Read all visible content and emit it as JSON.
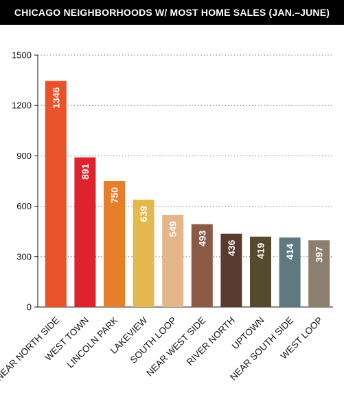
{
  "chart_data": {
    "type": "bar",
    "title": "CHICAGO NEIGHBORHOODS W/ MOST HOME SALES (JAN.–JUNE)",
    "categories": [
      "NEAR NORTH SIDE",
      "WEST TOWN",
      "LINCOLN PARK",
      "LAKEVIEW",
      "SOUTH LOOP",
      "NEAR WEST SIDE",
      "RIVER NORTH",
      "UPTOWN",
      "NEAR SOUTH SIDE",
      "WEST LOOP"
    ],
    "values": [
      1346,
      891,
      750,
      639,
      549,
      493,
      436,
      419,
      414,
      397
    ],
    "value_labels": [
      "1346",
      "891",
      "750",
      "639",
      "549",
      "493",
      "436",
      "419",
      "414",
      "397"
    ],
    "colors": [
      "#E8532B",
      "#E0222E",
      "#E67E2A",
      "#E3B84E",
      "#E5B68A",
      "#8B5A45",
      "#5A3A2E",
      "#544A2E",
      "#5E7A80",
      "#8C7F6E"
    ],
    "yticks": [
      0,
      300,
      600,
      900,
      1200,
      1500
    ],
    "ytick_labels": [
      "0",
      "300",
      "600",
      "900",
      "1200",
      "1500"
    ],
    "ylim": [
      0,
      1500
    ],
    "xlabel": "",
    "ylabel": "",
    "grid": "dotted horizontal",
    "legend": "none"
  }
}
